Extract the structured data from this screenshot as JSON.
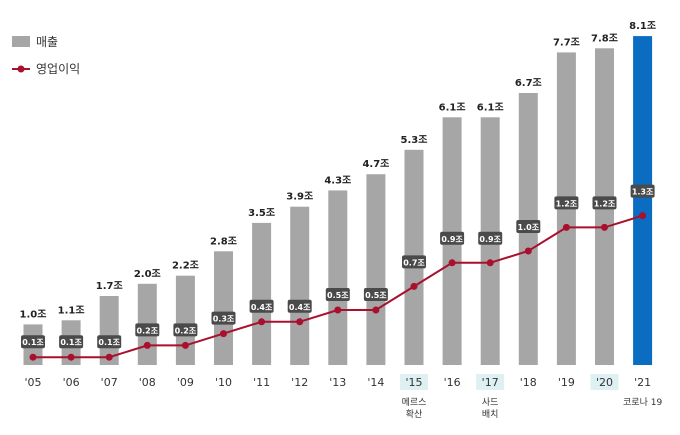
{
  "chart_data": {
    "type": "bar",
    "categories": [
      "'05",
      "'06",
      "'07",
      "'08",
      "'09",
      "'10",
      "'11",
      "'12",
      "'13",
      "'14",
      "'15",
      "'16",
      "'17",
      "'18",
      "'19",
      "'20",
      "'21"
    ],
    "series": [
      {
        "name": "매출",
        "type": "bar",
        "values": [
          1.0,
          1.1,
          1.7,
          2.0,
          2.2,
          2.8,
          3.5,
          3.9,
          4.3,
          4.7,
          5.3,
          6.1,
          6.1,
          6.7,
          7.7,
          7.8,
          8.1
        ],
        "labels": [
          "1.0조",
          "1.1조",
          "1.7조",
          "2.0조",
          "2.2조",
          "2.8조",
          "3.5조",
          "3.9조",
          "4.3조",
          "4.7조",
          "5.3조",
          "6.1조",
          "6.1조",
          "6.7조",
          "7.7조",
          "7.8조",
          "8.1조"
        ],
        "color": "#a6a6a6",
        "highlight_color": "#0b6dc2",
        "highlight_index": 16
      },
      {
        "name": "영업이익",
        "type": "line",
        "values": [
          0.1,
          0.1,
          0.1,
          0.2,
          0.2,
          0.3,
          0.4,
          0.4,
          0.5,
          0.5,
          0.7,
          0.9,
          0.9,
          1.0,
          1.2,
          1.2,
          1.3
        ],
        "labels": [
          "0.1조",
          "0.1조",
          "0.1조",
          "0.2조",
          "0.2조",
          "0.3조",
          "0.4조",
          "0.4조",
          "0.5조",
          "0.5조",
          "0.7조",
          "0.9조",
          "0.9조",
          "1.0조",
          "1.2조",
          "1.2조",
          "1.3조"
        ],
        "color": "#a8102e",
        "label_bg": "#4a4a4a"
      }
    ],
    "highlighted_categories": [
      "'15",
      "'17",
      "'20"
    ],
    "highlight_tick_bg": "#dff0f3",
    "annotations": [
      {
        "category": "'15",
        "lines": [
          "메르스",
          "확산"
        ]
      },
      {
        "category": "'17",
        "lines": [
          "사드",
          "배치"
        ]
      },
      {
        "category": "'21",
        "lines": [
          "코로나 19"
        ]
      }
    ],
    "legend_position": "top-left",
    "grid": false
  }
}
